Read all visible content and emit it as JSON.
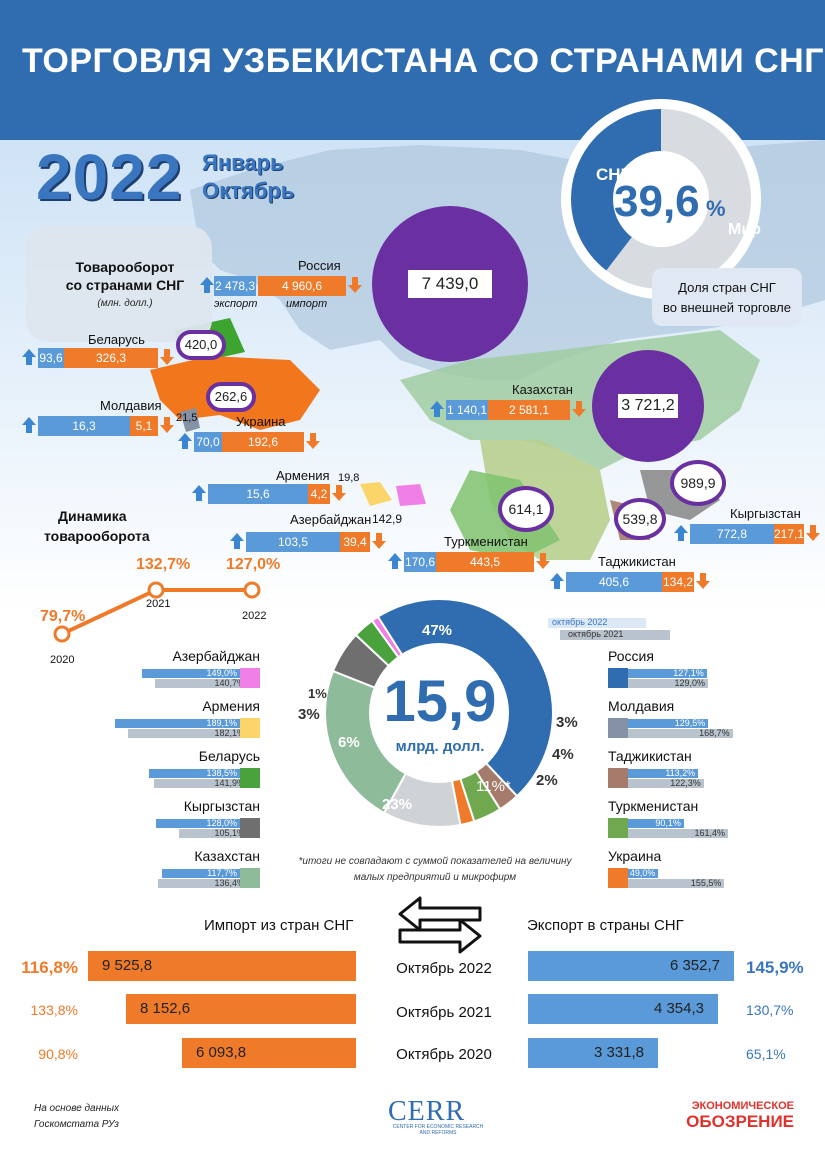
{
  "header": {
    "title": "ТОРГОВЛЯ УЗБЕКИСТАНА СО СТРАНАМИ СНГ"
  },
  "period": {
    "year": "2022",
    "line1": "Январь",
    "line2": "Октябрь"
  },
  "turnover_box": {
    "title_line1": "Товарооборот",
    "title_line2": "со странами СНГ",
    "unit": "(млн. долл.)"
  },
  "share": {
    "cis_label": "СНГ",
    "world_label": "Мир",
    "value": "39,6",
    "unit": "%",
    "caption_line1": "Доля стран СНГ",
    "caption_line2": "во внешней торговле",
    "fraction": 0.396
  },
  "map_countries": {
    "russia": {
      "name": "Россия",
      "export": "2 478,3",
      "import": "4 960,6",
      "export_label": "экспорт",
      "import_label": "импорт",
      "total": "7 439,0"
    },
    "belarus": {
      "name": "Беларусь",
      "export": "93,6",
      "import": "326,3",
      "total": "420,0"
    },
    "ukraine": {
      "name": "Украина",
      "export": "70,0",
      "import": "192,6",
      "total": "262,6"
    },
    "moldova": {
      "name": "Молдавия",
      "export": "16,3",
      "import": "5,1",
      "total": "21,5"
    },
    "armenia": {
      "name": "Армения",
      "export": "15,6",
      "import": "4,2",
      "total": "19,8"
    },
    "azerbaijan": {
      "name": "Азербайджан",
      "export": "103,5",
      "import": "39,4",
      "total": "142,9"
    },
    "kazakhstan": {
      "name": "Казахстан",
      "export": "1 140,1",
      "import": "2 581,1",
      "total": "3 721,2"
    },
    "turkmenistan": {
      "name": "Туркменистан",
      "export": "170,6",
      "import": "443,5",
      "total": "614,1"
    },
    "kyrgyzstan": {
      "name": "Кыргызстан",
      "export": "772,8",
      "import": "217,1",
      "total": "989,9"
    },
    "tajikistan": {
      "name": "Таджикистан",
      "export": "405,6",
      "import": "134,2",
      "total": "539,8"
    }
  },
  "dynamics": {
    "title_line1": "Динамика",
    "title_line2": "товарооборота",
    "points": [
      {
        "year": "2020",
        "value": "79,7%"
      },
      {
        "year": "2021",
        "value": "132,7%"
      },
      {
        "year": "2022",
        "value": "127,0%"
      }
    ]
  },
  "donut": {
    "total": "15,9",
    "unit": "млрд. долл.",
    "segments": [
      {
        "label": "47%",
        "share": 47,
        "color": "#2f6db0"
      },
      {
        "label": "3%",
        "share": 3,
        "color": "#a57c6b"
      },
      {
        "label": "4%",
        "share": 4,
        "color": "#6fa84f"
      },
      {
        "label": "2%",
        "share": 2,
        "color": "#ef7b2a"
      },
      {
        "label": "11%*",
        "share": 11,
        "color": "#d0d3d6"
      },
      {
        "label": "23%",
        "share": 23,
        "color": "#8ebc9a"
      },
      {
        "label": "6%",
        "share": 6,
        "color": "#6f6f6f"
      },
      {
        "label": "3%",
        "share": 3,
        "color": "#4aa23c"
      },
      {
        "label": "1%",
        "share": 1,
        "color": "#f07fe8"
      }
    ]
  },
  "legend": {
    "oct2022": "октябрь 2022",
    "oct2021": "октябрь 2021",
    "left": [
      {
        "name": "Азербайджан",
        "v2022": "149,0%",
        "v2021": "140,7%",
        "color": "#f07fe8"
      },
      {
        "name": "Армения",
        "v2022": "189,1%",
        "v2021": "182,1%",
        "color": "#fbd56a"
      },
      {
        "name": "Беларусь",
        "v2022": "138,5%",
        "v2021": "141,9%",
        "color": "#4aa23c"
      },
      {
        "name": "Кыргызстан",
        "v2022": "128,0%",
        "v2021": "105,1%",
        "color": "#6f6f6f"
      },
      {
        "name": "Казахстан",
        "v2022": "117,7%",
        "v2021": "136,4%",
        "color": "#8ebc9a"
      }
    ],
    "right": [
      {
        "name": "Россия",
        "v2022": "127,1%",
        "v2021": "129,0%",
        "color": "#2f6db0"
      },
      {
        "name": "Молдавия",
        "v2022": "129,5%",
        "v2021": "168,7%",
        "color": "#8592a6"
      },
      {
        "name": "Таджикистан",
        "v2022": "113,2%",
        "v2021": "122,3%",
        "color": "#a57c6b"
      },
      {
        "name": "Туркменистан",
        "v2022": "90,1%",
        "v2021": "161,4%",
        "color": "#6fa84f"
      },
      {
        "name": "Украина",
        "v2022": "49,0%",
        "v2021": "155,5%",
        "color": "#ef7b2a"
      }
    ]
  },
  "note": {
    "line1": "*итоги не совпадают с суммой показателей на величину",
    "line2": "малых предприятий и микрофирм"
  },
  "trade": {
    "import_head": "Импорт из стран СНГ",
    "export_head": "Экспорт в страны СНГ",
    "rows": [
      {
        "month": "Октябрь 2022",
        "import": "9 525,8",
        "import_pct": "116,8%",
        "export": "6 352,7",
        "export_pct": "145,9%"
      },
      {
        "month": "Октябрь 2021",
        "import": "8 152,6",
        "import_pct": "133,8%",
        "export": "4 354,3",
        "export_pct": "130,7%"
      },
      {
        "month": "Октябрь 2020",
        "import": "6 093,8",
        "import_pct": "90,8%",
        "export": "3 331,8",
        "export_pct": "65,1%"
      }
    ]
  },
  "footer": {
    "source_line1": "На основе данных",
    "source_line2": "Госкомстата РУз",
    "cerr_logo": "CERR",
    "cerr_sub": "CENTER FOR ECONOMIC RESEARCH AND REFORMS",
    "eo_line1": "ЭКОНОМИЧЕСКОЕ",
    "eo_line2": "ОБОЗРЕНИЕ"
  }
}
